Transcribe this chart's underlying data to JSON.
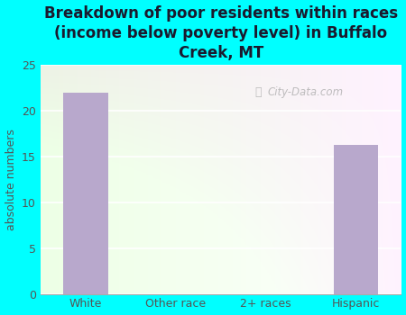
{
  "title": "Breakdown of poor residents within races\n(income below poverty level) in Buffalo\nCreek, MT",
  "categories": [
    "White",
    "Other race",
    "2+ races",
    "Hispanic"
  ],
  "values": [
    22,
    0,
    0,
    16.3
  ],
  "bar_color": "#b8a8cc",
  "ylabel": "absolute numbers",
  "ylim": [
    0,
    25
  ],
  "yticks": [
    0,
    5,
    10,
    15,
    20,
    25
  ],
  "background_outer": "#00ffff",
  "title_color": "#1a1a2e",
  "tick_label_color": "#555555",
  "ylabel_color": "#555555",
  "watermark": "City-Data.com",
  "title_fontsize": 12,
  "ylabel_fontsize": 9,
  "tick_fontsize": 9
}
